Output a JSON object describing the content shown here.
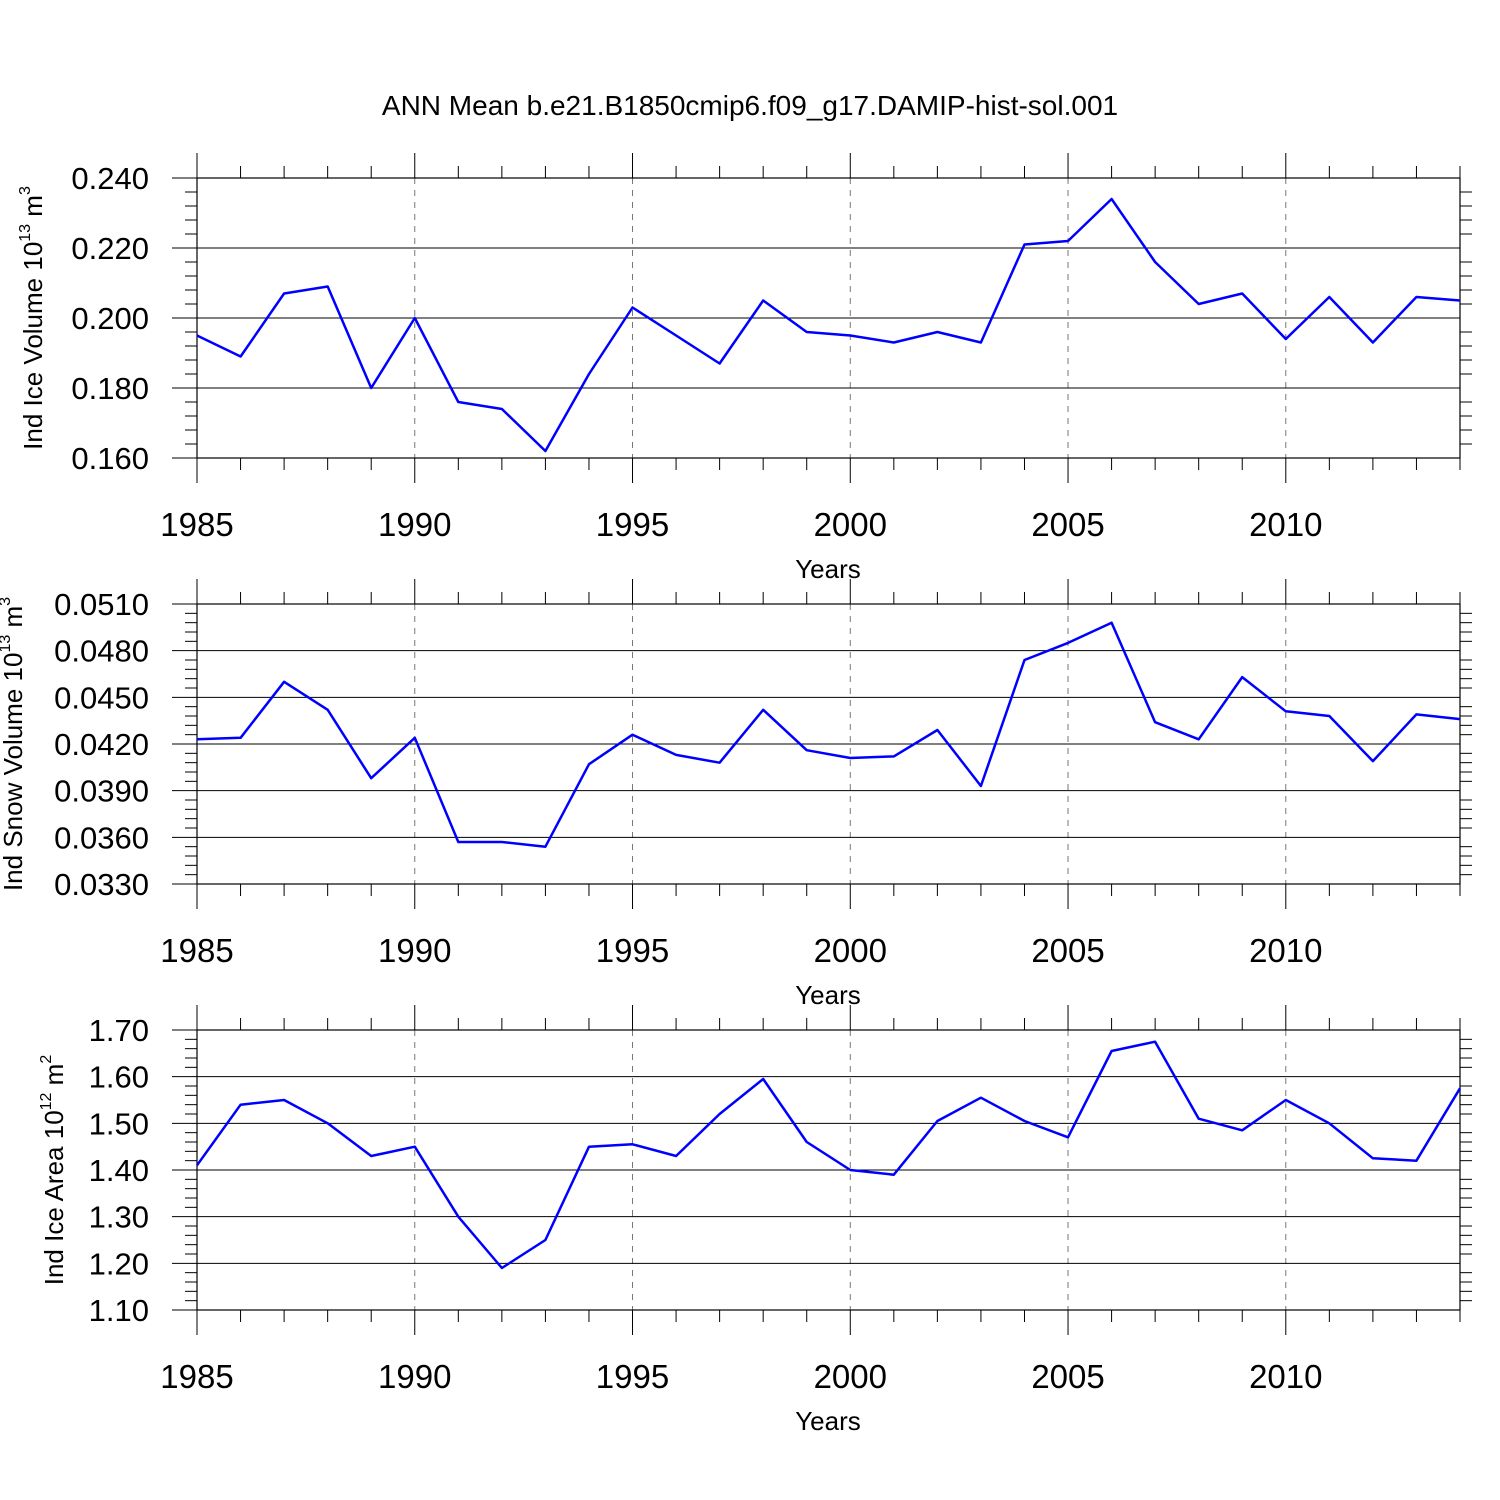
{
  "title": "ANN Mean b.e21.B1850cmip6.f09_g17.DAMIP-hist-sol.001",
  "line_color": "#0000ff",
  "chart_data": [
    {
      "type": "line",
      "ylabel_main": "Ind Ice Volume 10",
      "ylabel_exp": "13",
      "ylabel_unit": " m",
      "ylabel_unit_exp": "3",
      "xlabel": "Years",
      "xlim": [
        1985,
        2014
      ],
      "ylim": [
        0.16,
        0.24
      ],
      "yticks": [
        0.16,
        0.18,
        0.2,
        0.22,
        0.24
      ],
      "ytick_labels": [
        "0.160",
        "0.180",
        "0.200",
        "0.220",
        "0.240"
      ],
      "xticks": [
        1985,
        1990,
        1995,
        2000,
        2005,
        2010
      ],
      "xtick_labels": [
        "1985",
        "1990",
        "1995",
        "2000",
        "2005",
        "2010"
      ],
      "x": [
        1985,
        1986,
        1987,
        1988,
        1989,
        1990,
        1991,
        1992,
        1993,
        1994,
        1995,
        1996,
        1997,
        1998,
        1999,
        2000,
        2001,
        2002,
        2003,
        2004,
        2005,
        2006,
        2007,
        2008,
        2009,
        2010,
        2011,
        2012,
        2013,
        2014
      ],
      "y": [
        0.195,
        0.189,
        0.207,
        0.209,
        0.18,
        0.2,
        0.176,
        0.174,
        0.162,
        0.184,
        0.203,
        0.195,
        0.187,
        0.205,
        0.196,
        0.195,
        0.193,
        0.196,
        0.193,
        0.221,
        0.222,
        0.234,
        0.216,
        0.204,
        0.207,
        0.194,
        0.206,
        0.193,
        0.206,
        0.205
      ]
    },
    {
      "type": "line",
      "ylabel_main": "Ind Snow Volume 10",
      "ylabel_exp": "13",
      "ylabel_unit": " m",
      "ylabel_unit_exp": "3",
      "xlabel": "Years",
      "xlim": [
        1985,
        2014
      ],
      "ylim": [
        0.033,
        0.051
      ],
      "yticks": [
        0.033,
        0.036,
        0.039,
        0.042,
        0.045,
        0.048,
        0.051
      ],
      "ytick_labels": [
        "0.0330",
        "0.0360",
        "0.0390",
        "0.0420",
        "0.0450",
        "0.0480",
        "0.0510"
      ],
      "xticks": [
        1985,
        1990,
        1995,
        2000,
        2005,
        2010
      ],
      "xtick_labels": [
        "1985",
        "1990",
        "1995",
        "2000",
        "2005",
        "2010"
      ],
      "x": [
        1985,
        1986,
        1987,
        1988,
        1989,
        1990,
        1991,
        1992,
        1993,
        1994,
        1995,
        1996,
        1997,
        1998,
        1999,
        2000,
        2001,
        2002,
        2003,
        2004,
        2005,
        2006,
        2007,
        2008,
        2009,
        2010,
        2011,
        2012,
        2013,
        2014
      ],
      "y": [
        0.0423,
        0.0424,
        0.046,
        0.0442,
        0.0398,
        0.0424,
        0.0357,
        0.0357,
        0.0354,
        0.0407,
        0.0426,
        0.0413,
        0.0408,
        0.0442,
        0.0416,
        0.0411,
        0.0412,
        0.0429,
        0.0393,
        0.0474,
        0.0485,
        0.0498,
        0.0434,
        0.0423,
        0.0463,
        0.0441,
        0.0438,
        0.0409,
        0.0439,
        0.0436
      ]
    },
    {
      "type": "line",
      "ylabel_main": "Ind Ice Area 10",
      "ylabel_exp": "12",
      "ylabel_unit": " m",
      "ylabel_unit_exp": "2",
      "xlabel": "Years",
      "xlim": [
        1985,
        2014
      ],
      "ylim": [
        1.1,
        1.7
      ],
      "yticks": [
        1.1,
        1.2,
        1.3,
        1.4,
        1.5,
        1.6,
        1.7
      ],
      "ytick_labels": [
        "1.10",
        "1.20",
        "1.30",
        "1.40",
        "1.50",
        "1.60",
        "1.70"
      ],
      "xticks": [
        1985,
        1990,
        1995,
        2000,
        2005,
        2010
      ],
      "xtick_labels": [
        "1985",
        "1990",
        "1995",
        "2000",
        "2005",
        "2010"
      ],
      "x": [
        1985,
        1986,
        1987,
        1988,
        1989,
        1990,
        1991,
        1992,
        1993,
        1994,
        1995,
        1996,
        1997,
        1998,
        1999,
        2000,
        2001,
        2002,
        2003,
        2004,
        2005,
        2006,
        2007,
        2008,
        2009,
        2010,
        2011,
        2012,
        2013,
        2014
      ],
      "y": [
        1.41,
        1.54,
        1.55,
        1.5,
        1.43,
        1.45,
        1.3,
        1.19,
        1.25,
        1.45,
        1.455,
        1.43,
        1.52,
        1.595,
        1.46,
        1.4,
        1.39,
        1.505,
        1.555,
        1.505,
        1.47,
        1.655,
        1.675,
        1.51,
        1.485,
        1.55,
        1.5,
        1.425,
        1.42,
        1.575
      ]
    }
  ]
}
